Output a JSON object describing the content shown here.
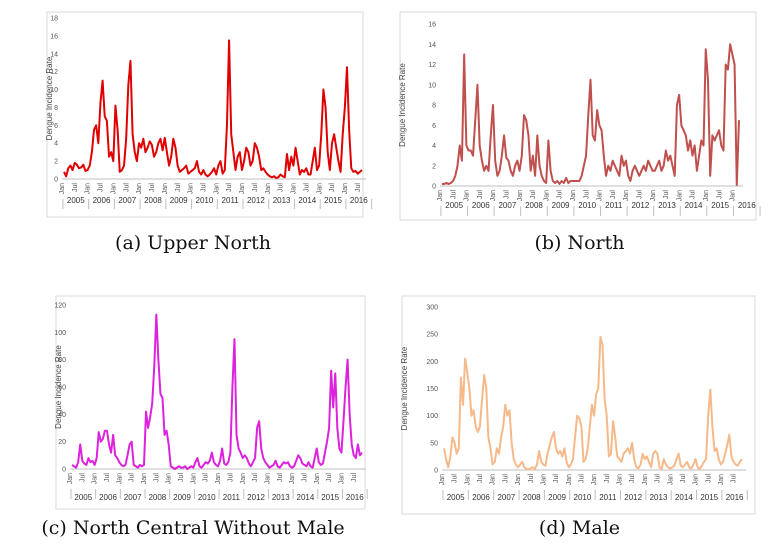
{
  "chart_data": [
    {
      "type": "line",
      "id": "a",
      "caption": "(a) Upper North",
      "ylabel": "Dengue Incidence Rate",
      "color": "#e00000",
      "ylim": [
        0,
        18
      ],
      "yticks": [
        0,
        2,
        4,
        6,
        8,
        10,
        12,
        14,
        16,
        18
      ],
      "month_labels": [
        "Jan",
        "Jul"
      ],
      "years": [
        "2005",
        "2006",
        "2007",
        "2008",
        "2009",
        "2010",
        "2011",
        "2012",
        "2013",
        "2014",
        "2015",
        "2016"
      ],
      "values": [
        0.8,
        0.3,
        1.2,
        1.5,
        1.0,
        1.8,
        1.6,
        1.2,
        1.3,
        1.6,
        0.9,
        1.0,
        1.5,
        3.0,
        5.5,
        6.0,
        4.0,
        8.5,
        11.0,
        7.0,
        6.5,
        2.5,
        3.0,
        2.0,
        8.2,
        5.5,
        0.8,
        1.0,
        1.5,
        4.5,
        10.5,
        13.2,
        5.0,
        3.0,
        2.0,
        4.0,
        3.5,
        4.5,
        3.0,
        3.5,
        4.2,
        3.8,
        2.5,
        3.0,
        4.0,
        4.5,
        3.2,
        4.6,
        3.0,
        1.5,
        2.5,
        4.5,
        3.5,
        1.5,
        0.8,
        1.0,
        1.2,
        1.5,
        0.6,
        0.8,
        1.0,
        1.2,
        2.0,
        0.8,
        0.5,
        1.0,
        0.5,
        0.3,
        0.5,
        0.8,
        1.2,
        0.5,
        1.5,
        2.0,
        0.6,
        1.0,
        6.0,
        15.5,
        5.0,
        3.0,
        1.0,
        2.5,
        3.0,
        1.0,
        2.0,
        3.5,
        3.0,
        1.5,
        2.0,
        4.0,
        3.5,
        2.5,
        1.0,
        1.2,
        0.8,
        0.5,
        0.3,
        0.2,
        0.3,
        0.1,
        0.2,
        0.5,
        0.3,
        0.2,
        2.8,
        1.0,
        2.5,
        1.5,
        3.5,
        2.0,
        0.5,
        1.0,
        0.8,
        1.2,
        0.5,
        0.5,
        2.0,
        3.5,
        1.0,
        1.5,
        5.0,
        10.0,
        8.0,
        3.0,
        1.0,
        4.0,
        5.0,
        3.5,
        2.0,
        0.8,
        5.0,
        8.0,
        12.5,
        5.5,
        1.2,
        0.8,
        0.9,
        0.6,
        0.8,
        1.0
      ]
    },
    {
      "type": "line",
      "id": "b",
      "caption": "(b) North",
      "ylabel": "Dengue Incidence Rate",
      "color": "#c0504d",
      "ylim": [
        0,
        16
      ],
      "yticks": [
        0,
        2,
        4,
        6,
        8,
        10,
        12,
        14,
        16
      ],
      "month_labels": [
        "Jan",
        "Jul"
      ],
      "years": [
        "2005",
        "2006",
        "2007",
        "2008",
        "2009",
        "2010",
        "2011",
        "2012",
        "2013",
        "2014",
        "2015",
        "2016"
      ],
      "values": [
        0.2,
        0.2,
        0.3,
        0.2,
        0.3,
        0.5,
        1.0,
        2.0,
        4.0,
        2.5,
        13.0,
        4.0,
        3.5,
        3.5,
        3.0,
        6.5,
        10.0,
        4.0,
        2.5,
        1.5,
        2.0,
        1.5,
        5.0,
        8.0,
        2.5,
        1.0,
        1.5,
        3.0,
        5.0,
        2.8,
        2.5,
        1.5,
        1.0,
        2.0,
        2.5,
        1.5,
        3.0,
        7.0,
        6.5,
        5.0,
        1.5,
        3.0,
        1.0,
        5.0,
        2.0,
        1.0,
        0.5,
        0.3,
        4.5,
        1.5,
        0.5,
        0.3,
        0.5,
        0.2,
        0.5,
        0.3,
        0.8,
        0.3,
        0.5,
        0.5,
        0.5,
        0.5,
        0.5,
        1.0,
        2.0,
        3.0,
        7.0,
        10.5,
        5.0,
        4.5,
        7.5,
        6.0,
        5.5,
        3.0,
        1.0,
        2.0,
        1.5,
        2.5,
        2.0,
        1.5,
        1.0,
        3.0,
        2.0,
        2.5,
        1.0,
        0.5,
        1.5,
        2.0,
        1.5,
        1.0,
        1.5,
        2.0,
        1.5,
        2.5,
        2.0,
        1.5,
        1.5,
        2.0,
        2.5,
        1.5,
        2.0,
        3.5,
        2.5,
        3.0,
        2.0,
        1.0,
        8.0,
        9.0,
        6.0,
        5.5,
        5.0,
        3.5,
        4.5,
        3.0,
        4.0,
        1.5,
        3.0,
        4.5,
        4.0,
        13.5,
        10.5,
        1.0,
        5.0,
        4.5,
        5.0,
        5.5,
        4.0,
        3.5,
        12.0,
        11.5,
        14.0,
        13.0,
        12.0,
        0.1,
        6.5
      ]
    },
    {
      "type": "line",
      "id": "c",
      "caption": "(c) North Central Without Male",
      "ylabel": "Dengue Incidence Rate",
      "color": "#dd22dd",
      "ylim": [
        0,
        120
      ],
      "yticks": [
        0,
        20,
        40,
        60,
        80,
        100,
        120
      ],
      "month_labels": [
        "Jan",
        "Jul"
      ],
      "years": [
        "2005",
        "2006",
        "2007",
        "2008",
        "2009",
        "2010",
        "2011",
        "2012",
        "2013",
        "2014",
        "2015",
        "2016"
      ],
      "values": [
        3,
        2,
        1,
        5,
        18,
        6,
        4,
        3,
        8,
        5,
        6,
        3,
        8,
        27,
        20,
        22,
        28,
        28,
        18,
        12,
        25,
        10,
        8,
        5,
        3,
        2,
        3,
        10,
        18,
        20,
        3,
        2,
        1,
        3,
        2,
        3,
        42,
        30,
        38,
        48,
        75,
        113,
        80,
        55,
        52,
        25,
        28,
        18,
        2,
        1,
        0,
        1,
        2,
        1,
        1,
        2,
        0,
        1,
        2,
        1,
        5,
        8,
        2,
        1,
        3,
        5,
        4,
        6,
        12,
        5,
        3,
        2,
        6,
        15,
        4,
        3,
        5,
        12,
        60,
        95,
        25,
        15,
        12,
        8,
        10,
        8,
        4,
        2,
        5,
        8,
        30,
        35,
        15,
        8,
        5,
        3,
        1,
        2,
        3,
        6,
        2,
        1,
        3,
        5,
        4,
        5,
        2,
        1,
        2,
        6,
        10,
        8,
        4,
        3,
        2,
        5,
        2,
        1,
        8,
        15,
        5,
        3,
        4,
        12,
        20,
        30,
        72,
        45,
        70,
        30,
        15,
        12,
        35,
        60,
        80,
        40,
        18,
        10,
        8,
        18,
        10,
        12
      ]
    },
    {
      "type": "line",
      "id": "d",
      "caption": "(d) Male",
      "ylabel": "Dengue Incidence Rate",
      "color": "#f5b98a",
      "ylim": [
        0,
        300
      ],
      "yticks": [
        0,
        50,
        100,
        150,
        200,
        250,
        300
      ],
      "month_labels": [
        "Jan",
        "Jul"
      ],
      "years": [
        "2005",
        "2006",
        "2007",
        "2008",
        "2009",
        "2010",
        "2011",
        "2012",
        "2013",
        "2014",
        "2015",
        "2016"
      ],
      "values": [
        40,
        20,
        5,
        25,
        60,
        50,
        30,
        40,
        170,
        120,
        205,
        180,
        150,
        100,
        110,
        80,
        70,
        80,
        130,
        175,
        150,
        60,
        40,
        10,
        15,
        40,
        30,
        60,
        80,
        120,
        100,
        110,
        50,
        20,
        10,
        5,
        10,
        15,
        5,
        2,
        1,
        3,
        5,
        2,
        10,
        35,
        15,
        10,
        8,
        30,
        45,
        60,
        70,
        40,
        30,
        35,
        25,
        40,
        15,
        5,
        10,
        20,
        60,
        100,
        95,
        80,
        15,
        20,
        40,
        80,
        120,
        100,
        140,
        150,
        245,
        230,
        130,
        100,
        25,
        30,
        90,
        60,
        25,
        20,
        15,
        30,
        35,
        40,
        30,
        50,
        20,
        5,
        3,
        10,
        30,
        20,
        25,
        15,
        5,
        30,
        35,
        30,
        5,
        2,
        20,
        10,
        5,
        3,
        5,
        8,
        20,
        30,
        8,
        5,
        10,
        15,
        5,
        3,
        10,
        20,
        5,
        2,
        8,
        15,
        20,
        100,
        148,
        80,
        35,
        40,
        20,
        10,
        15,
        30,
        45,
        65,
        25,
        15,
        10,
        8,
        15,
        20
      ]
    }
  ]
}
